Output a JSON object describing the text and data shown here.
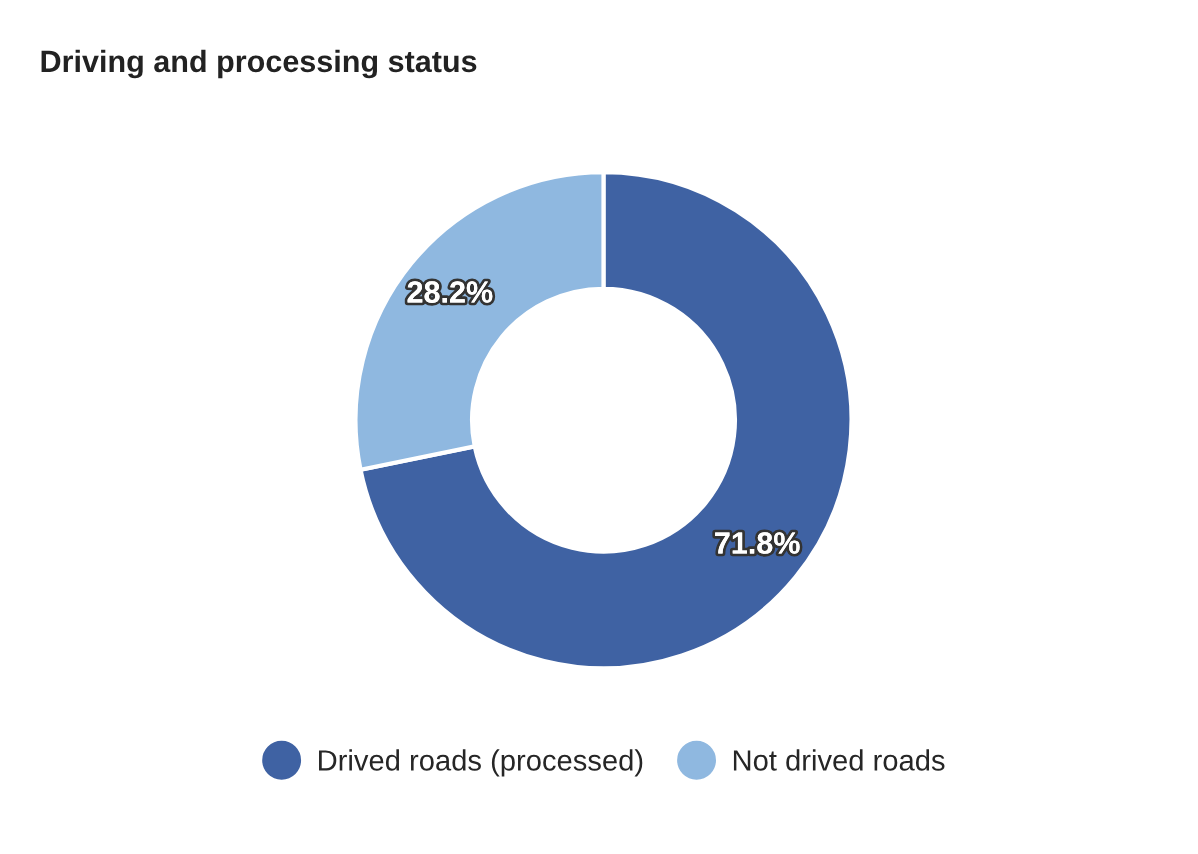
{
  "chart_data": {
    "type": "donut",
    "title": "Driving and processing status",
    "categories": [
      "Drived roads (processed)",
      "Not drived roads"
    ],
    "values": [
      71.8,
      28.2
    ],
    "colors": [
      "#3f62a3",
      "#8fb8e0"
    ],
    "value_labels": [
      "71.8%",
      "28.2%"
    ],
    "legend": "bottom"
  }
}
